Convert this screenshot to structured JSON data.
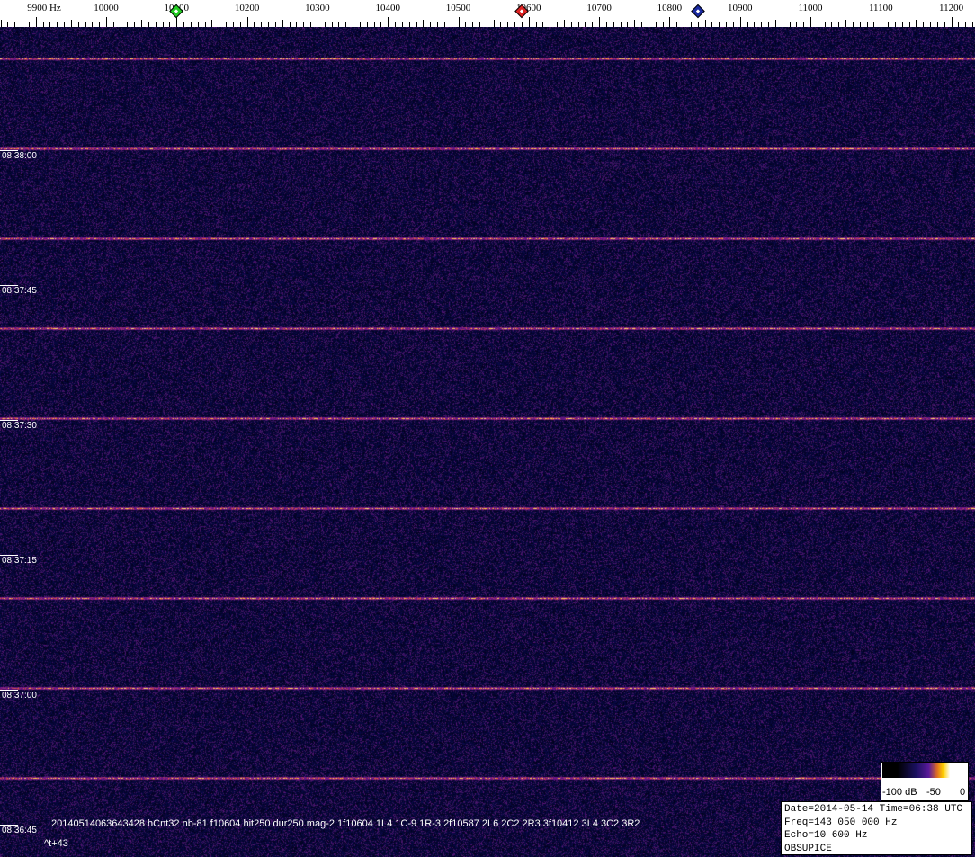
{
  "frequency_axis": {
    "unit_label": "9900 Hz",
    "labels": [
      "10000",
      "10100",
      "10200",
      "10300",
      "10400",
      "10500",
      "10600",
      "10700",
      "10800",
      "10900",
      "11000",
      "11100",
      "11200"
    ]
  },
  "markers": [
    {
      "name": "green-marker",
      "color": "#22cc22",
      "frequency_hz": 10100
    },
    {
      "name": "red-marker",
      "color": "#dd2222",
      "frequency_hz": 10590
    },
    {
      "name": "blue-marker",
      "color": "#1a2aa0",
      "frequency_hz": 10840
    }
  ],
  "time_labels": [
    "08:38:00",
    "08:37:45",
    "08:37:30",
    "08:37:15",
    "08:37:00",
    "08:36:45"
  ],
  "log": {
    "line1": "20140514063643428 hCnt32 nb-81 f10604 hit250 dur250 mag-2 1f10604 1L4 1C-9 1R-3 2f10587 2L6 2C2 2R3 3f10412 3L4 3C2 3R2",
    "line2": "^t+43"
  },
  "colorbar": {
    "labels": [
      "-100 dB",
      "-50",
      "0"
    ]
  },
  "info": {
    "date_time": "Date=2014-05-14 Time=06:38 UTC",
    "freq": "Freq=143 050 000 Hz",
    "echo": "Echo=10 600 Hz",
    "station": "OBSUPICE"
  },
  "colors": {
    "background": "#14103a",
    "carrier": "#ffa030"
  }
}
